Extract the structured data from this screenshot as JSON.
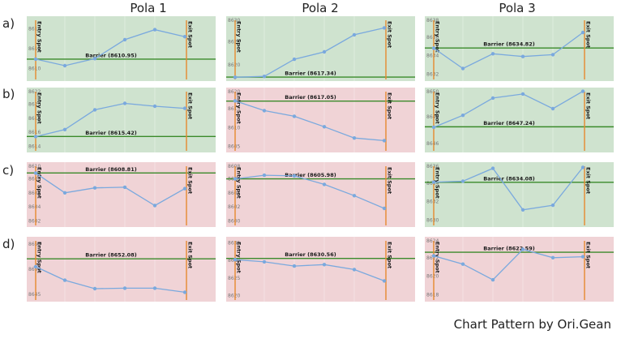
{
  "column_headers": [
    "Pola 1",
    "Pola 2",
    "Pola 3"
  ],
  "row_headers": [
    "a)",
    "b)",
    "c)",
    "d)"
  ],
  "footer": "Chart Pattern by Ori.Gean",
  "entry_label": "Entry Spot",
  "exit_label": "Exit Spot",
  "colors": {
    "up_bg": "#cfe3cf",
    "down_bg": "#f0d3d6",
    "line": "#7aa9de",
    "barrier": "#3a8a2a",
    "spot_line": "#e6892f",
    "tick_text": "#777777",
    "grid": "#ffffff"
  },
  "chart_data": [
    {
      "type": "line",
      "row": "a)",
      "column": "Pola 1",
      "outcome": "up",
      "ylim": [
        8609,
        8615
      ],
      "y_ticks": [
        "8610",
        "8612",
        "8614"
      ],
      "values": [
        8610.95,
        8610.3,
        8611.0,
        8612.9,
        8613.9,
        8613.2
      ],
      "barrier_value": 8610.95,
      "barrier_label": "Barrier (8610.95)"
    },
    {
      "type": "line",
      "row": "a)",
      "column": "Pola 2",
      "outcome": "up",
      "ylim": [
        8617,
        8630
      ],
      "y_ticks": [
        "8620",
        "8625",
        "8630"
      ],
      "values": [
        8617.3,
        8617.5,
        8621.2,
        8622.8,
        8626.5,
        8628.0
      ],
      "barrier_value": 8617.34,
      "barrier_label": "Barrier (8617.34)"
    },
    {
      "type": "line",
      "row": "a)",
      "column": "Pola 3",
      "outcome": "up",
      "ylim": [
        8631.5,
        8638
      ],
      "y_ticks": [
        "8632",
        "8634",
        "8636",
        "8638"
      ],
      "values": [
        8634.8,
        8632.6,
        8634.2,
        8633.9,
        8634.1,
        8636.5
      ],
      "barrier_value": 8634.82,
      "barrier_label": "Barrier (8634.82)"
    },
    {
      "type": "line",
      "row": "b)",
      "column": "Pola 1",
      "outcome": "up",
      "ylim": [
        8613.5,
        8622
      ],
      "y_ticks": [
        "8614",
        "8616",
        "8618",
        "8620",
        "8622"
      ],
      "values": [
        8615.4,
        8616.4,
        8619.2,
        8620.1,
        8619.7,
        8619.4
      ],
      "barrier_value": 8615.42,
      "barrier_label": "Barrier (8615.42)"
    },
    {
      "type": "line",
      "row": "b)",
      "column": "Pola 2",
      "outcome": "down",
      "ylim": [
        8604,
        8620
      ],
      "y_ticks": [
        "8605",
        "8610",
        "8615",
        "8620"
      ],
      "values": [
        8617.1,
        8614.5,
        8613.0,
        8610.2,
        8607.2,
        8606.5
      ],
      "barrier_value": 8617.05,
      "barrier_label": "Barrier (8617.05)"
    },
    {
      "type": "line",
      "row": "b)",
      "column": "Pola 3",
      "outcome": "up",
      "ylim": [
        8645.5,
        8650
      ],
      "y_ticks": [
        "8646",
        "8648",
        "8650"
      ],
      "values": [
        8647.2,
        8648.1,
        8649.4,
        8649.7,
        8648.6,
        8649.9
      ],
      "barrier_value": 8647.24,
      "barrier_label": "Barrier (8647.24)"
    },
    {
      "type": "line",
      "row": "c)",
      "column": "Pola 1",
      "outcome": "down",
      "ylim": [
        8601.5,
        8610
      ],
      "y_ticks": [
        "8602",
        "8604",
        "8606",
        "8608",
        "8610"
      ],
      "values": [
        8608.8,
        8606.0,
        8606.7,
        8606.8,
        8604.2,
        8606.6
      ],
      "barrier_value": 8608.81,
      "barrier_label": "Barrier (8608.81)"
    },
    {
      "type": "line",
      "row": "c)",
      "column": "Pola 2",
      "outcome": "down",
      "ylim": [
        8599.5,
        8608
      ],
      "y_ticks": [
        "8600",
        "8602",
        "8604",
        "8606",
        "8608"
      ],
      "values": [
        8605.98,
        8606.5,
        8606.4,
        8605.2,
        8603.6,
        8601.8
      ],
      "barrier_value": 8605.98,
      "barrier_label": "Barrier (8605.98)"
    },
    {
      "type": "line",
      "row": "c)",
      "column": "Pola 3",
      "outcome": "up",
      "ylim": [
        8629.5,
        8636
      ],
      "y_ticks": [
        "8630",
        "8632",
        "8634",
        "8636"
      ],
      "values": [
        8634.1,
        8634.2,
        8635.6,
        8631.1,
        8631.6,
        8635.7
      ],
      "barrier_value": 8634.08,
      "barrier_label": "Barrier (8634.08)"
    },
    {
      "type": "line",
      "row": "d)",
      "column": "Pola 1",
      "outcome": "down",
      "ylim": [
        8644,
        8656
      ],
      "y_ticks": [
        "8645",
        "8650",
        "8655"
      ],
      "values": [
        8650.5,
        8647.8,
        8646.1,
        8646.2,
        8646.2,
        8645.4
      ],
      "barrier_value": 8652.08,
      "barrier_label": "Barrier (8652.08)"
    },
    {
      "type": "line",
      "row": "d)",
      "column": "Pola 2",
      "outcome": "down",
      "ylim": [
        8619,
        8636
      ],
      "y_ticks": [
        "8620",
        "8625",
        "8630",
        "8635"
      ],
      "values": [
        8630.2,
        8629.6,
        8628.4,
        8628.8,
        8627.4,
        8624.2
      ],
      "barrier_value": 8630.56,
      "barrier_label": "Barrier (8630.56)"
    },
    {
      "type": "line",
      "row": "d)",
      "column": "Pola 3",
      "outcome": "down",
      "ylim": [
        8617.5,
        8624
      ],
      "y_ticks": [
        "8618",
        "8620",
        "8622",
        "8624"
      ],
      "values": [
        8622.2,
        8621.3,
        8619.6,
        8622.9,
        8622.0,
        8622.1
      ],
      "barrier_value": 8622.59,
      "barrier_label": "Barrier (8622.59)"
    }
  ]
}
